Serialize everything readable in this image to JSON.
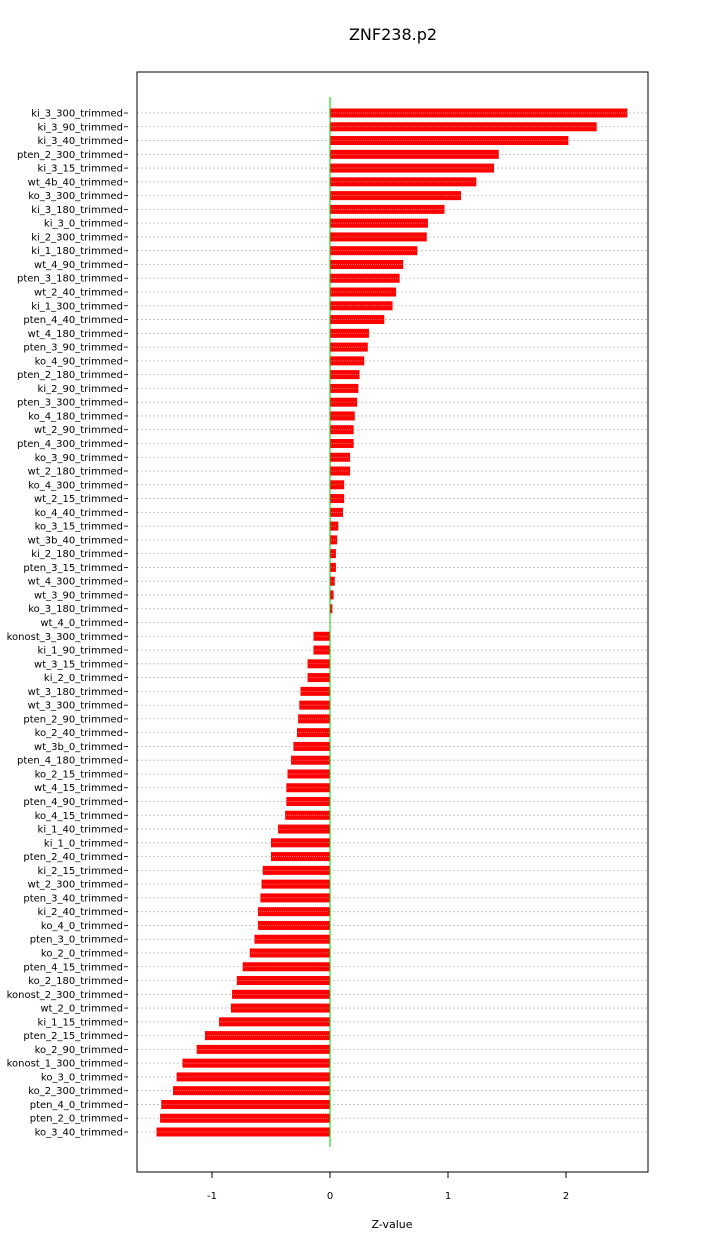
{
  "chart_data": {
    "type": "bar",
    "orientation": "horizontal",
    "title": "ZNF238.p2",
    "xlabel": "Z-value",
    "ylabel": "",
    "xlim": [
      -1.63,
      2.68
    ],
    "xticks": [
      -1,
      0,
      1,
      2
    ],
    "xtick_labels": [
      "-1",
      "0",
      "1",
      "2"
    ],
    "grid": "horizontal dotted",
    "zero_line": true,
    "colors": {
      "bar": "#ff0000",
      "bar_stripe": "#ff9090",
      "zero_line": "#00cc00",
      "grid": "#bbbbbb",
      "frame": "#000000"
    },
    "categories": [
      "ki_3_300_trimmed",
      "ki_3_90_trimmed",
      "ki_3_40_trimmed",
      "pten_2_300_trimmed",
      "ki_3_15_trimmed",
      "wt_4b_40_trimmed",
      "ko_3_300_trimmed",
      "ki_3_180_trimmed",
      "ki_3_0_trimmed",
      "ki_2_300_trimmed",
      "ki_1_180_trimmed",
      "wt_4_90_trimmed",
      "pten_3_180_trimmed",
      "wt_2_40_trimmed",
      "ki_1_300_trimmed",
      "pten_4_40_trimmed",
      "wt_4_180_trimmed",
      "pten_3_90_trimmed",
      "ko_4_90_trimmed",
      "pten_2_180_trimmed",
      "ki_2_90_trimmed",
      "pten_3_300_trimmed",
      "ko_4_180_trimmed",
      "wt_2_90_trimmed",
      "pten_4_300_trimmed",
      "ko_3_90_trimmed",
      "wt_2_180_trimmed",
      "ko_4_300_trimmed",
      "wt_2_15_trimmed",
      "ko_4_40_trimmed",
      "ko_3_15_trimmed",
      "wt_3b_40_trimmed",
      "ki_2_180_trimmed",
      "pten_3_15_trimmed",
      "wt_4_300_trimmed",
      "wt_3_90_trimmed",
      "ko_3_180_trimmed",
      "wt_4_0_trimmed",
      "konost_3_300_trimmed",
      "ki_1_90_trimmed",
      "wt_3_15_trimmed",
      "ki_2_0_trimmed",
      "wt_3_180_trimmed",
      "wt_3_300_trimmed",
      "pten_2_90_trimmed",
      "ko_2_40_trimmed",
      "wt_3b_0_trimmed",
      "pten_4_180_trimmed",
      "ko_2_15_trimmed",
      "wt_4_15_trimmed",
      "pten_4_90_trimmed",
      "ko_4_15_trimmed",
      "ki_1_40_trimmed",
      "ki_1_0_trimmed",
      "pten_2_40_trimmed",
      "ki_2_15_trimmed",
      "wt_2_300_trimmed",
      "pten_3_40_trimmed",
      "ki_2_40_trimmed",
      "ko_4_0_trimmed",
      "pten_3_0_trimmed",
      "ko_2_0_trimmed",
      "pten_4_15_trimmed",
      "ko_2_180_trimmed",
      "konost_2_300_trimmed",
      "wt_2_0_trimmed",
      "ki_1_15_trimmed",
      "pten_2_15_trimmed",
      "ko_2_90_trimmed",
      "konost_1_300_trimmed",
      "ko_3_0_trimmed",
      "ko_2_300_trimmed",
      "pten_4_0_trimmed",
      "pten_2_0_trimmed",
      "ko_3_40_trimmed"
    ],
    "values": [
      2.52,
      2.26,
      2.02,
      1.43,
      1.39,
      1.24,
      1.11,
      0.97,
      0.83,
      0.82,
      0.74,
      0.62,
      0.59,
      0.56,
      0.53,
      0.46,
      0.33,
      0.32,
      0.29,
      0.25,
      0.24,
      0.23,
      0.21,
      0.2,
      0.2,
      0.17,
      0.17,
      0.12,
      0.12,
      0.11,
      0.07,
      0.06,
      0.05,
      0.05,
      0.04,
      0.03,
      0.02,
      0.0,
      -0.14,
      -0.14,
      -0.19,
      -0.19,
      -0.25,
      -0.26,
      -0.27,
      -0.28,
      -0.31,
      -0.33,
      -0.36,
      -0.37,
      -0.37,
      -0.38,
      -0.44,
      -0.5,
      -0.5,
      -0.57,
      -0.58,
      -0.59,
      -0.61,
      -0.61,
      -0.64,
      -0.68,
      -0.74,
      -0.79,
      -0.83,
      -0.84,
      -0.94,
      -1.06,
      -1.13,
      -1.25,
      -1.3,
      -1.33,
      -1.43,
      -1.44,
      -1.47
    ]
  }
}
